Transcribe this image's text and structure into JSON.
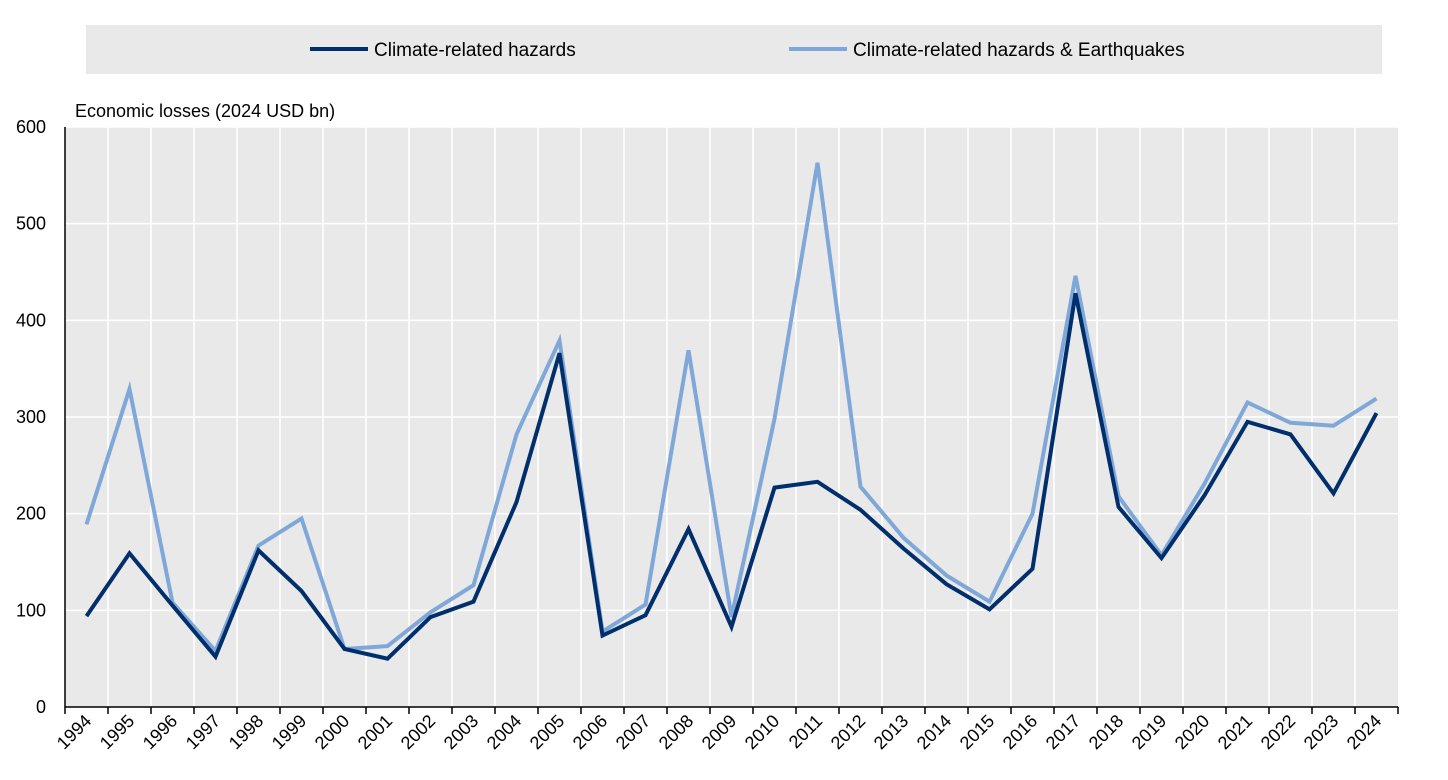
{
  "chart_data": {
    "type": "line",
    "ylabel": "Economic losses (2024 USD bn)",
    "ylim": [
      0,
      600
    ],
    "yticks": [
      0,
      100,
      200,
      300,
      400,
      500,
      600
    ],
    "grid": true,
    "legend_placement": "top",
    "x": [
      "1994",
      "1995",
      "1996",
      "1997",
      "1998",
      "1999",
      "2000",
      "2001",
      "2002",
      "2003",
      "2004",
      "2005",
      "2006",
      "2007",
      "2008",
      "2009",
      "2010",
      "2011",
      "2012",
      "2013",
      "2014",
      "2015",
      "2016",
      "2017",
      "2018",
      "2019",
      "2020",
      "2021",
      "2022",
      "2023",
      "2024"
    ],
    "series": [
      {
        "name": "Climate-related hazards",
        "color": "#002f6c",
        "values": [
          94,
          159,
          105,
          52,
          162,
          120,
          60,
          50,
          93,
          109,
          212,
          366,
          74,
          95,
          184,
          83,
          227,
          233,
          204,
          164,
          127,
          101,
          143,
          428,
          207,
          154,
          219,
          295,
          282,
          221,
          304
        ]
      },
      {
        "name": "Climate-related hazards & Earthquakes",
        "color": "#7fa8d8",
        "values": [
          189,
          329,
          108,
          58,
          167,
          195,
          60,
          63,
          98,
          126,
          282,
          379,
          78,
          106,
          369,
          93,
          298,
          563,
          228,
          175,
          136,
          109,
          200,
          446,
          218,
          157,
          231,
          315,
          294,
          291,
          319
        ]
      }
    ]
  }
}
